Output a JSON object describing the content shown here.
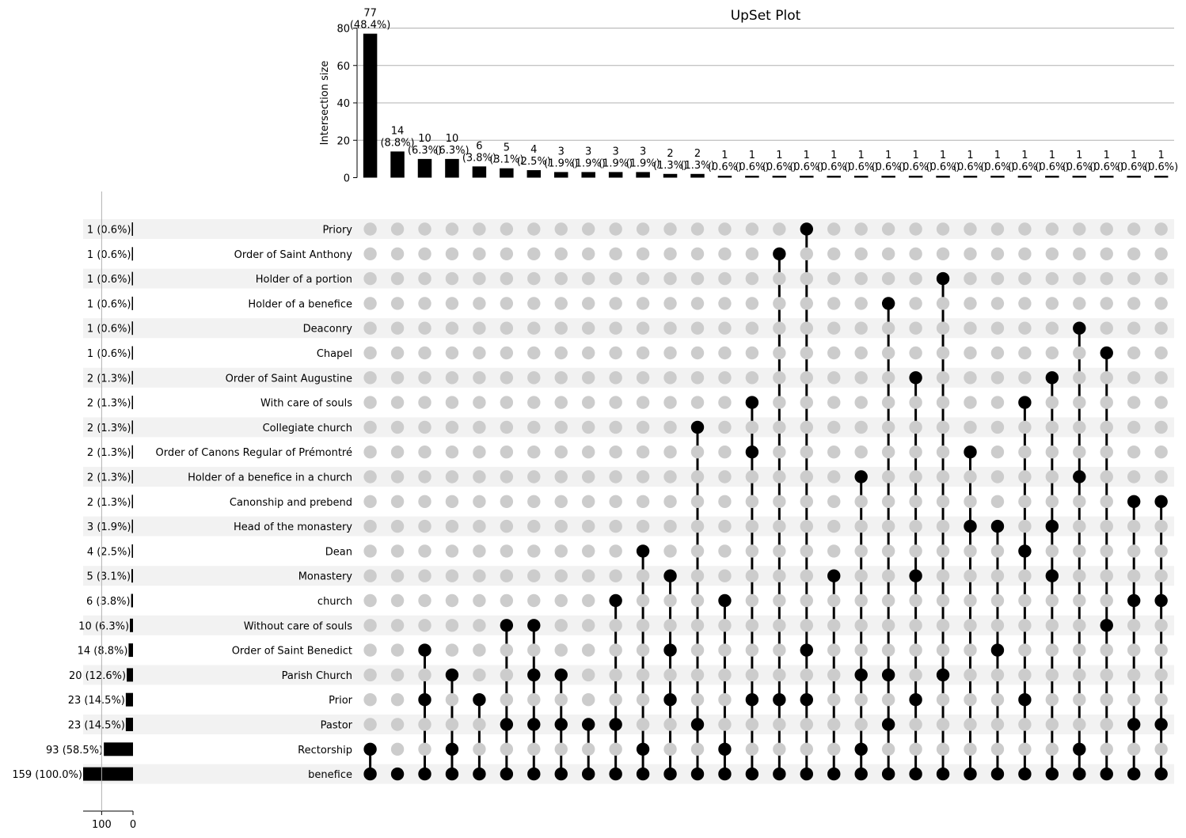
{
  "chart_data": {
    "type": "upset",
    "title": "UpSet Plot",
    "ylabel": "Intersection size",
    "ylim": [
      0,
      80
    ],
    "yticks": [
      "0",
      "20",
      "40",
      "60",
      "80"
    ],
    "set_size_ticks": [
      "100",
      "0"
    ],
    "set_size_xlim": [
      0,
      159
    ],
    "sets": [
      {
        "name": "Priory",
        "size": 1,
        "label": "1 (0.6%)"
      },
      {
        "name": "Order of Saint Anthony",
        "size": 1,
        "label": "1 (0.6%)"
      },
      {
        "name": "Holder of a portion",
        "size": 1,
        "label": "1 (0.6%)"
      },
      {
        "name": "Holder of a benefice",
        "size": 1,
        "label": "1 (0.6%)"
      },
      {
        "name": "Deaconry",
        "size": 1,
        "label": "1 (0.6%)"
      },
      {
        "name": "Chapel",
        "size": 1,
        "label": "1 (0.6%)"
      },
      {
        "name": "Order of Saint Augustine",
        "size": 2,
        "label": "2 (1.3%)"
      },
      {
        "name": "With care of souls",
        "size": 2,
        "label": "2 (1.3%)"
      },
      {
        "name": "Collegiate church",
        "size": 2,
        "label": "2 (1.3%)"
      },
      {
        "name": "Order of Canons Regular of Prémontré",
        "size": 2,
        "label": "2 (1.3%)"
      },
      {
        "name": "Holder of a benefice in a church",
        "size": 2,
        "label": "2 (1.3%)"
      },
      {
        "name": "Canonship and prebend",
        "size": 2,
        "label": "2 (1.3%)"
      },
      {
        "name": "Head of the monastery",
        "size": 3,
        "label": "3 (1.9%)"
      },
      {
        "name": "Dean",
        "size": 4,
        "label": "4 (2.5%)"
      },
      {
        "name": "Monastery",
        "size": 5,
        "label": "5 (3.1%)"
      },
      {
        "name": "church",
        "size": 6,
        "label": "6 (3.8%)"
      },
      {
        "name": "Without care of souls",
        "size": 10,
        "label": "10 (6.3%)"
      },
      {
        "name": "Order of Saint Benedict",
        "size": 14,
        "label": "14 (8.8%)"
      },
      {
        "name": "Parish Church",
        "size": 20,
        "label": "20 (12.6%)"
      },
      {
        "name": "Prior",
        "size": 23,
        "label": "23 (14.5%)"
      },
      {
        "name": "Pastor",
        "size": 23,
        "label": "23 (14.5%)"
      },
      {
        "name": "Rectorship",
        "size": 93,
        "label": "93 (58.5%)"
      },
      {
        "name": "benefice",
        "size": 159,
        "label": "159 (100.0%)"
      }
    ],
    "intersections": [
      {
        "size": 77,
        "count": "77",
        "pct": "(48.4%)",
        "members": [
          "Rectorship",
          "benefice"
        ]
      },
      {
        "size": 14,
        "count": "14",
        "pct": "(8.8%)",
        "members": [
          "benefice"
        ]
      },
      {
        "size": 10,
        "count": "10",
        "pct": "(6.3%)",
        "members": [
          "Order of Saint Benedict",
          "Prior",
          "benefice"
        ]
      },
      {
        "size": 10,
        "count": "10",
        "pct": "(6.3%)",
        "members": [
          "Parish Church",
          "Rectorship",
          "benefice"
        ]
      },
      {
        "size": 6,
        "count": "6",
        "pct": "(3.8%)",
        "members": [
          "Prior",
          "benefice"
        ]
      },
      {
        "size": 5,
        "count": "5",
        "pct": "(3.1%)",
        "members": [
          "Without care of souls",
          "Pastor",
          "benefice"
        ]
      },
      {
        "size": 4,
        "count": "4",
        "pct": "(2.5%)",
        "members": [
          "Without care of souls",
          "Parish Church",
          "Pastor",
          "benefice"
        ]
      },
      {
        "size": 3,
        "count": "3",
        "pct": "(1.9%)",
        "members": [
          "Parish Church",
          "Pastor",
          "benefice"
        ]
      },
      {
        "size": 3,
        "count": "3",
        "pct": "(1.9%)",
        "members": [
          "Pastor",
          "benefice"
        ]
      },
      {
        "size": 3,
        "count": "3",
        "pct": "(1.9%)",
        "members": [
          "church",
          "Pastor",
          "benefice"
        ]
      },
      {
        "size": 3,
        "count": "3",
        "pct": "(1.9%)",
        "members": [
          "Dean",
          "Rectorship",
          "benefice"
        ]
      },
      {
        "size": 2,
        "count": "2",
        "pct": "(1.3%)",
        "members": [
          "Monastery",
          "Order of Saint Benedict",
          "Prior",
          "benefice"
        ]
      },
      {
        "size": 2,
        "count": "2",
        "pct": "(1.3%)",
        "members": [
          "Collegiate church",
          "Pastor",
          "benefice"
        ]
      },
      {
        "size": 1,
        "count": "1",
        "pct": "(0.6%)",
        "members": [
          "church",
          "Rectorship",
          "benefice"
        ]
      },
      {
        "size": 1,
        "count": "1",
        "pct": "(0.6%)",
        "members": [
          "With care of souls",
          "Order of Canons Regular of Prémontré",
          "Prior",
          "benefice"
        ]
      },
      {
        "size": 1,
        "count": "1",
        "pct": "(0.6%)",
        "members": [
          "Order of Saint Anthony",
          "Prior",
          "benefice"
        ]
      },
      {
        "size": 1,
        "count": "1",
        "pct": "(0.6%)",
        "members": [
          "Priory",
          "Order of Saint Benedict",
          "Prior",
          "benefice"
        ]
      },
      {
        "size": 1,
        "count": "1",
        "pct": "(0.6%)",
        "members": [
          "Monastery",
          "benefice"
        ]
      },
      {
        "size": 1,
        "count": "1",
        "pct": "(0.6%)",
        "members": [
          "Holder of a benefice in a church",
          "Parish Church",
          "Rectorship",
          "benefice"
        ]
      },
      {
        "size": 1,
        "count": "1",
        "pct": "(0.6%)",
        "members": [
          "Holder of a benefice",
          "Parish Church",
          "Pastor",
          "benefice"
        ]
      },
      {
        "size": 1,
        "count": "1",
        "pct": "(0.6%)",
        "members": [
          "Order of Saint Augustine",
          "Monastery",
          "Prior",
          "benefice"
        ]
      },
      {
        "size": 1,
        "count": "1",
        "pct": "(0.6%)",
        "members": [
          "Holder of a portion",
          "Parish Church",
          "benefice"
        ]
      },
      {
        "size": 1,
        "count": "1",
        "pct": "(0.6%)",
        "members": [
          "Order of Canons Regular of Prémontré",
          "Head of the monastery",
          "benefice"
        ]
      },
      {
        "size": 1,
        "count": "1",
        "pct": "(0.6%)",
        "members": [
          "Head of the monastery",
          "Order of Saint Benedict",
          "benefice"
        ]
      },
      {
        "size": 1,
        "count": "1",
        "pct": "(0.6%)",
        "members": [
          "With care of souls",
          "Dean",
          "Prior",
          "benefice"
        ]
      },
      {
        "size": 1,
        "count": "1",
        "pct": "(0.6%)",
        "members": [
          "Order of Saint Augustine",
          "Head of the monastery",
          "Monastery",
          "benefice"
        ]
      },
      {
        "size": 1,
        "count": "1",
        "pct": "(0.6%)",
        "members": [
          "Deaconry",
          "Holder of a benefice in a church",
          "Rectorship",
          "benefice"
        ]
      },
      {
        "size": 1,
        "count": "1",
        "pct": "(0.6%)",
        "members": [
          "Chapel",
          "Without care of souls",
          "benefice"
        ]
      },
      {
        "size": 1,
        "count": "1",
        "pct": "(0.6%)",
        "members": [
          "Canonship and prebend",
          "church",
          "Pastor",
          "benefice"
        ]
      },
      {
        "size": 1,
        "count": "1",
        "pct": "(0.6%)",
        "members": [
          "Canonship and prebend",
          "church",
          "Pastor",
          "benefice"
        ]
      }
    ],
    "colors": {
      "bar": "#000000",
      "dot_active": "#000000",
      "dot_inactive": "#cccccc",
      "stripe": "#f2f2f2",
      "grid": "#b0b0b0"
    }
  }
}
